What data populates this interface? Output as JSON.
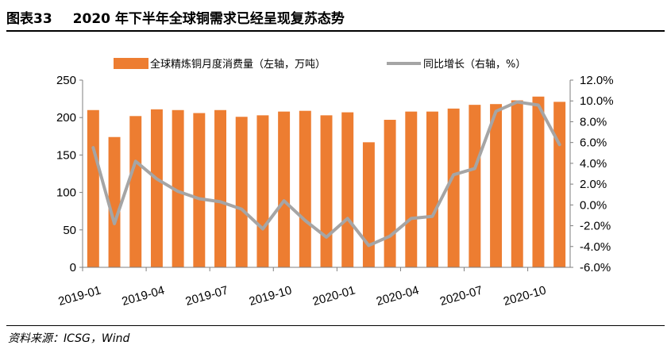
{
  "header": {
    "figure_label": "图表33",
    "title": "2020 年下半年全球铜需求已经呈现复苏态势"
  },
  "footer": {
    "source": "资料来源：ICSG，Wind"
  },
  "chart_data": {
    "type": "bar",
    "bar_color": "#ED7D31",
    "line_color": "#A5A5A5",
    "categories": [
      "2019-01",
      "2019-02",
      "2019-03",
      "2019-04",
      "2019-05",
      "2019-06",
      "2019-07",
      "2019-08",
      "2019-09",
      "2019-10",
      "2019-11",
      "2019-12",
      "2020-01",
      "2020-02",
      "2020-03",
      "2020-04",
      "2020-05",
      "2020-06",
      "2020-07",
      "2020-08",
      "2020-09",
      "2020-10",
      "2020-11"
    ],
    "x_tick_labels": [
      "2019-01",
      "2019-04",
      "2019-07",
      "2019-10",
      "2020-01",
      "2020-04",
      "2020-07",
      "2020-10"
    ],
    "x_tick_index": [
      0,
      3,
      6,
      9,
      12,
      15,
      18,
      21
    ],
    "series": [
      {
        "name": "全球精炼铜月度消费量（左轴，万吨）",
        "kind": "bar",
        "axis": "left",
        "values": [
          210,
          174,
          202,
          211,
          210,
          206,
          210,
          201,
          203,
          208,
          209,
          203,
          207,
          167,
          197,
          208,
          208,
          212,
          217,
          218,
          223,
          228,
          221
        ]
      },
      {
        "name": "同比增长（右轴，%）",
        "kind": "line",
        "axis": "right",
        "values": [
          5.5,
          -1.8,
          4.2,
          2.5,
          1.3,
          0.6,
          0.3,
          -0.4,
          -2.3,
          0.4,
          -1.5,
          -3.1,
          -1.3,
          -3.9,
          -3.0,
          -1.3,
          -1.1,
          2.9,
          3.5,
          9.0,
          9.9,
          9.6,
          5.8
        ]
      }
    ],
    "y_left": {
      "min": 0,
      "max": 250,
      "ticks": [
        "0",
        "50",
        "100",
        "150",
        "200",
        "250"
      ]
    },
    "y_right": {
      "min": -6,
      "max": 12,
      "ticks": [
        "-6.0%",
        "-4.0%",
        "-2.0%",
        "0.0%",
        "2.0%",
        "4.0%",
        "6.0%",
        "8.0%",
        "10.0%",
        "12.0%"
      ]
    },
    "legend_position": "top"
  }
}
